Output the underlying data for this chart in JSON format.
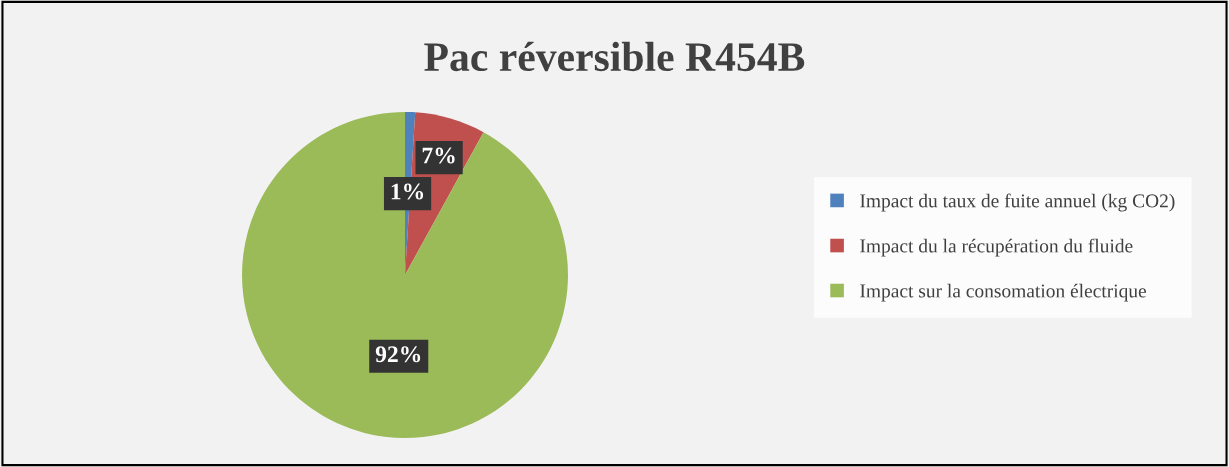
{
  "chart_data": {
    "type": "pie",
    "title": "Pac réversible R454B",
    "categories": [
      "Impact du taux de fuite annuel (kg CO2)",
      "Impact du la récupération du fluide",
      "Impact sur la consomation électrique"
    ],
    "values": [
      1,
      7,
      92
    ],
    "colors": [
      "#4f81bd",
      "#c0504d",
      "#9bbb59"
    ],
    "value_labels": [
      "1%",
      "7%",
      "92%"
    ],
    "legend": "right"
  }
}
